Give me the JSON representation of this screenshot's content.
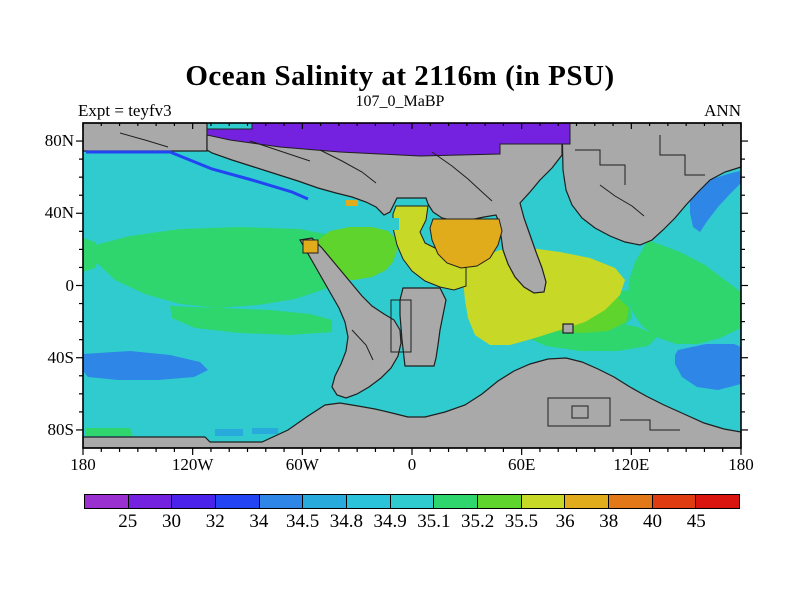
{
  "title": "Ocean Salinity at 2116m (in PSU)",
  "subtitle": "107_0_MaBP",
  "experiment_label": "Expt = teyfv3",
  "season_label": "ANN",
  "chart_data": {
    "type": "heatmap",
    "variable": "Ocean Salinity",
    "depth": "2116m",
    "units": "PSU",
    "experiment": "teyfv3",
    "time_period": "107_0_MaBP",
    "season": "ANN",
    "x_axis": {
      "tick_labels": [
        "180",
        "120W",
        "60W",
        "0",
        "60E",
        "120E",
        "180"
      ],
      "range_deg": [
        -180,
        180
      ],
      "major_tick_deg": 60,
      "minor_tick_deg": 10
    },
    "y_axis": {
      "tick_labels": [
        "80N",
        "40N",
        "0",
        "40S",
        "80S"
      ],
      "range_deg": [
        -90,
        90
      ],
      "major_tick_deg": 40,
      "minor_tick_deg": 10
    },
    "colorbar": {
      "boundary_labels": [
        "25",
        "30",
        "32",
        "34",
        "34.5",
        "34.8",
        "34.9",
        "35.1",
        "35.2",
        "35.5",
        "36",
        "38",
        "40",
        "45"
      ],
      "colors": [
        "#9B30D0",
        "#7522E0",
        "#4A22EA",
        "#2244F2",
        "#2E86E6",
        "#29AADC",
        "#2BC3DA",
        "#30CBCE",
        "#2FD66E",
        "#5FD42C",
        "#C8D826",
        "#E0AC1C",
        "#E37818",
        "#DF3C12",
        "#DA1510"
      ]
    },
    "land_color": "#A9A9A9",
    "coast_color": "#1f1f1f",
    "regions": [
      {
        "name": "arctic-ocean-band",
        "salinity_psu": "25-30"
      },
      {
        "name": "north-pacific",
        "salinity_psu": "34.9-35.1"
      },
      {
        "name": "north-america-coastal-strip",
        "salinity_psu": "32-34"
      },
      {
        "name": "central-pacific-gyre",
        "salinity_psu": "35.1-35.2"
      },
      {
        "name": "equatorial-west-pacific",
        "salinity_psu": "35.1-35.2"
      },
      {
        "name": "caribbean-proto-atlantic",
        "salinity_psu": "35.2-35.5"
      },
      {
        "name": "north-atlantic-channel",
        "salinity_psu": "35.5-36"
      },
      {
        "name": "central-tethys",
        "salinity_psu": "36-38"
      },
      {
        "name": "eastern-tethys-band",
        "salinity_psu": "35.5-36"
      },
      {
        "name": "northwest-pacific-coastal",
        "salinity_psu": "32-34"
      },
      {
        "name": "south-pacific-lens",
        "salinity_psu": "34-34.5"
      },
      {
        "name": "indian-ocean-lens",
        "salinity_psu": "34-34.5"
      },
      {
        "name": "southern-ocean",
        "salinity_psu": "34.9-35.1"
      }
    ]
  }
}
